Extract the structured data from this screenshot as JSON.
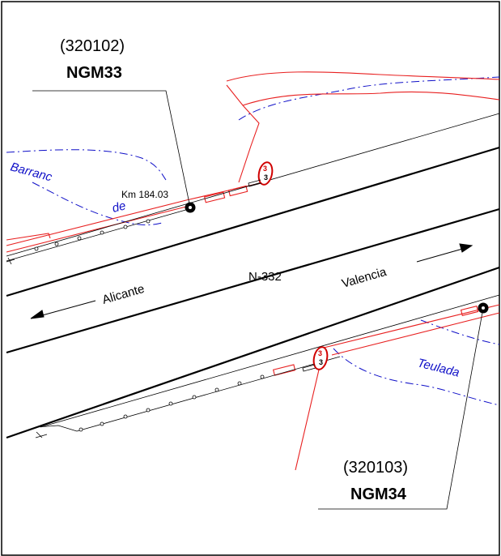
{
  "colors": {
    "background": "#ffffff",
    "road_line": "#000000",
    "boundary": "#e82020",
    "water": "#1010c8",
    "marker_ring": "#d00000"
  },
  "benchmarks": [
    {
      "code": "(320102)",
      "name": "NGM33",
      "km": "Km 184.03"
    },
    {
      "code": "(320103)",
      "name": "NGM34"
    }
  ],
  "road": {
    "name": "N-332",
    "toward_left": "Alicante",
    "toward_right": "Valencia"
  },
  "watercourses": {
    "barranc_1": "Barranc",
    "barranc_2": "de",
    "teulada": "Teulada"
  },
  "km_post_upper": {
    "top": "3",
    "bottom": "3"
  },
  "km_post_lower": {
    "top": "3",
    "bottom": "3"
  }
}
